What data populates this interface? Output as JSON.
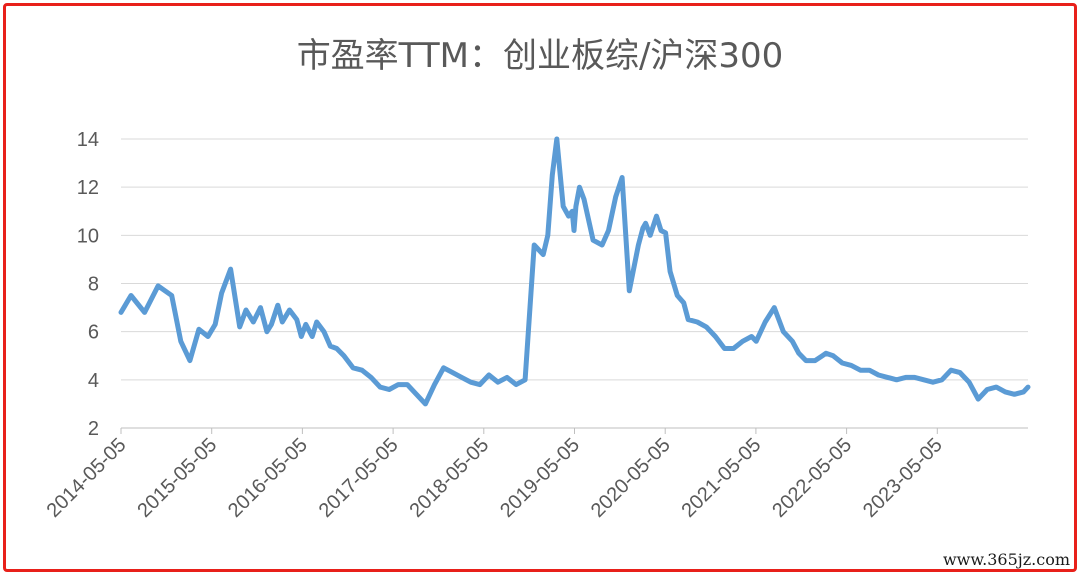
{
  "chart_data": {
    "type": "line",
    "title": "市盈率TTM：创业板综/沪深300",
    "xlabel": "",
    "ylabel": "",
    "ylim": [
      2,
      14
    ],
    "yticks": [
      2,
      4,
      6,
      8,
      10,
      12,
      14
    ],
    "xtick_labels": [
      "2014-05-05",
      "2015-05-05",
      "2016-05-05",
      "2017-05-05",
      "2018-05-05",
      "2019-05-05",
      "2020-05-05",
      "2021-05-05",
      "2022-05-05",
      "2023-05-05"
    ],
    "grid": true,
    "legend": "none",
    "line_color": "#5b9bd5",
    "x": [
      2014.34,
      2014.45,
      2014.6,
      2014.75,
      2014.9,
      2015.0,
      2015.1,
      2015.2,
      2015.3,
      2015.38,
      2015.45,
      2015.55,
      2015.65,
      2015.72,
      2015.8,
      2015.88,
      2015.95,
      2016.0,
      2016.07,
      2016.12,
      2016.2,
      2016.28,
      2016.33,
      2016.38,
      2016.45,
      2016.5,
      2016.58,
      2016.65,
      2016.72,
      2016.8,
      2016.9,
      2017.0,
      2017.1,
      2017.2,
      2017.3,
      2017.4,
      2017.5,
      2017.6,
      2017.7,
      2017.8,
      2017.9,
      2018.0,
      2018.1,
      2018.2,
      2018.3,
      2018.4,
      2018.5,
      2018.6,
      2018.7,
      2018.8,
      2018.9,
      2019.0,
      2019.05,
      2019.1,
      2019.15,
      2019.22,
      2019.28,
      2019.32,
      2019.34,
      2019.36,
      2019.4,
      2019.45,
      2019.55,
      2019.65,
      2019.72,
      2019.8,
      2019.87,
      2019.95,
      2020.05,
      2020.1,
      2020.13,
      2020.18,
      2020.25,
      2020.3,
      2020.35,
      2020.4,
      2020.48,
      2020.55,
      2020.6,
      2020.7,
      2020.8,
      2020.9,
      2021.0,
      2021.1,
      2021.2,
      2021.3,
      2021.35,
      2021.45,
      2021.55,
      2021.65,
      2021.75,
      2021.82,
      2021.9,
      2022.0,
      2022.08,
      2022.12,
      2022.2,
      2022.3,
      2022.4,
      2022.5,
      2022.6,
      2022.7,
      2022.8,
      2022.9,
      2023.0,
      2023.1,
      2023.2,
      2023.3,
      2023.4,
      2023.5,
      2023.6,
      2023.7,
      2023.8,
      2023.9,
      2024.0,
      2024.1,
      2024.2,
      2024.3,
      2024.35
    ],
    "values": [
      6.8,
      7.5,
      6.8,
      7.9,
      7.5,
      5.6,
      4.8,
      6.1,
      5.8,
      6.3,
      7.6,
      8.6,
      6.2,
      6.9,
      6.4,
      7.0,
      6.0,
      6.3,
      7.1,
      6.4,
      6.9,
      6.5,
      5.8,
      6.3,
      5.8,
      6.4,
      6.0,
      5.4,
      5.3,
      5.0,
      4.5,
      4.4,
      4.1,
      3.7,
      3.6,
      3.8,
      3.8,
      3.4,
      3.0,
      3.8,
      4.5,
      4.3,
      4.1,
      3.9,
      3.8,
      4.2,
      3.9,
      4.1,
      3.8,
      4.0,
      9.6,
      9.2,
      10.0,
      12.5,
      14.0,
      11.2,
      10.8,
      11.0,
      10.2,
      11.2,
      12.0,
      11.5,
      9.8,
      9.6,
      10.2,
      11.6,
      12.4,
      7.7,
      9.6,
      10.3,
      10.5,
      10.0,
      10.8,
      10.2,
      10.1,
      8.5,
      7.5,
      7.2,
      6.5,
      6.4,
      6.2,
      5.8,
      5.3,
      5.3,
      5.6,
      5.8,
      5.6,
      6.4,
      7.0,
      6.0,
      5.6,
      5.1,
      4.8,
      4.8,
      5.0,
      5.1,
      5.0,
      4.7,
      4.6,
      4.4,
      4.4,
      4.2,
      4.1,
      4.0,
      4.1,
      4.1,
      4.0,
      3.9,
      4.0,
      4.4,
      4.3,
      3.9,
      3.2,
      3.6,
      3.7,
      3.5,
      3.4,
      3.5,
      3.7
    ]
  },
  "watermark": "www.365jz.com"
}
